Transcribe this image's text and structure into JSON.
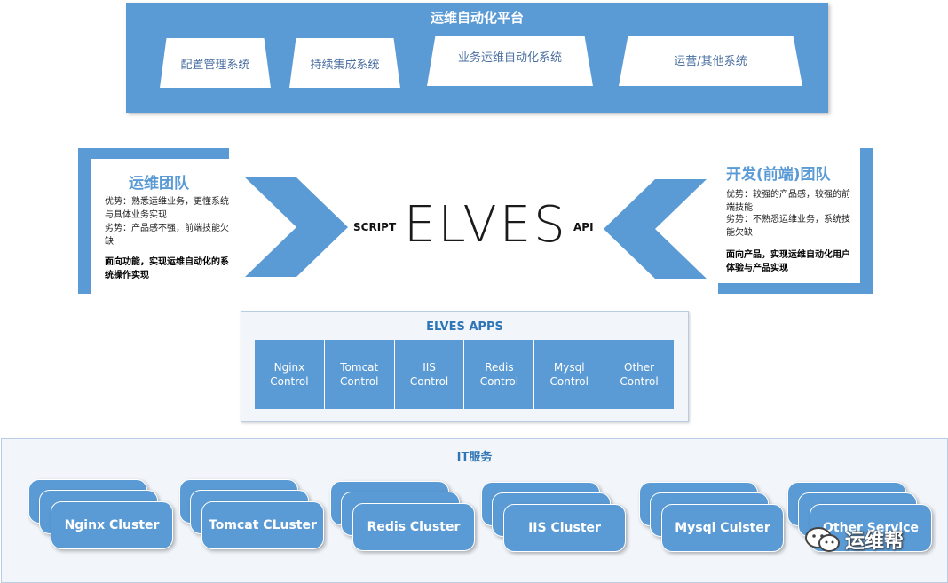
{
  "platform": {
    "title": "运维自动化平台",
    "systems": [
      "配置管理系统",
      "持续集成系统",
      "业务运维自动化系统",
      "运营/其他系统"
    ]
  },
  "ops_team": {
    "title": "运维团队",
    "strength": "优势：熟悉运维业务，更懂系统与具体业务实现",
    "weakness": "劣势：产品感不强，前端技能欠缺",
    "focus": "面向功能，实现运维自动化的系统操作实现"
  },
  "dev_team": {
    "title": "开发(前端)团队",
    "strength": "优势：较强的产品感，较强的前端技能",
    "weakness": "劣势：不熟悉运维业务，系统技能欠缺",
    "focus": "面向产品，实现运维自动化用户体验与产品实现"
  },
  "center": {
    "script_label": "SCRIPT",
    "logo": "ELVES",
    "api_label": "API"
  },
  "apps": {
    "title": "ELVES APPS",
    "items": [
      {
        "line1": "Nginx",
        "line2": "Control"
      },
      {
        "line1": "Tomcat",
        "line2": "Control"
      },
      {
        "line1": "IIS",
        "line2": "Control"
      },
      {
        "line1": "Redis",
        "line2": "Control"
      },
      {
        "line1": "Mysql",
        "line2": "Control"
      },
      {
        "line1": "Other",
        "line2": "Control"
      }
    ]
  },
  "it_services": {
    "title": "IT服务",
    "clusters": [
      "Nginx Cluster",
      "Tomcat CLuster",
      "Redis Cluster",
      "IIS Cluster",
      "Mysql Culster",
      "Other Service"
    ]
  },
  "watermark": {
    "text": "运维帮"
  },
  "colors": {
    "accent": "#5b9bd5",
    "title_blue": "#2e75b6"
  }
}
